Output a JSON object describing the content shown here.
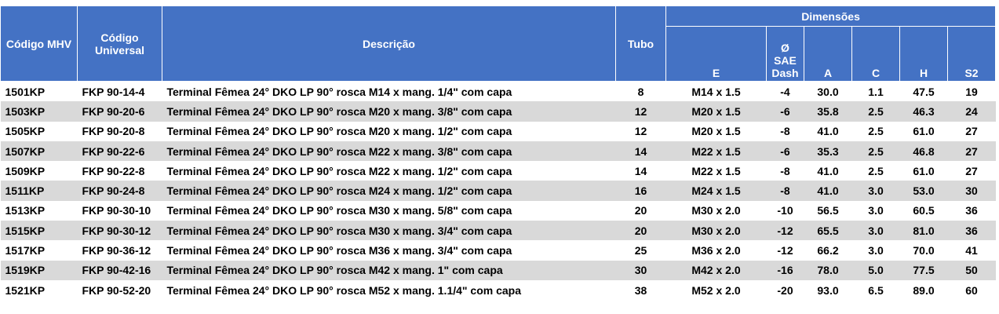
{
  "header": {
    "codigo_mhv": "Código MHV",
    "codigo_universal": "Código Universal",
    "descricao": "Descrição",
    "tubo": "Tubo",
    "dimensoes": "Dimensões",
    "e": "E",
    "sae_dash": "Ø SAE Dash",
    "a": "A",
    "c": "C",
    "h": "H",
    "s2": "S2"
  },
  "rows": [
    [
      "1501KP",
      "FKP 90-14-4",
      "Terminal Fêmea 24° DKO LP 90° rosca M14 x mang. 1/4\" com capa",
      "8",
      "M14 x 1.5",
      "-4",
      "30.0",
      "1.1",
      "47.5",
      "19"
    ],
    [
      "1503KP",
      "FKP 90-20-6",
      "Terminal Fêmea 24° DKO LP 90° rosca M20 x mang. 3/8\" com capa",
      "12",
      "M20 x 1.5",
      "-6",
      "35.8",
      "2.5",
      "46.3",
      "24"
    ],
    [
      "1505KP",
      "FKP 90-20-8",
      "Terminal Fêmea 24° DKO LP 90° rosca M20 x mang. 1/2\" com capa",
      "12",
      "M20 x 1.5",
      "-8",
      "41.0",
      "2.5",
      "61.0",
      "27"
    ],
    [
      "1507KP",
      "FKP 90-22-6",
      "Terminal Fêmea 24° DKO LP 90° rosca M22 x mang. 3/8\" com capa",
      "14",
      "M22 x 1.5",
      "-6",
      "35.3",
      "2.5",
      "46.8",
      "27"
    ],
    [
      "1509KP",
      "FKP 90-22-8",
      "Terminal Fêmea 24° DKO LP 90° rosca M22 x mang. 1/2\" com capa",
      "14",
      "M22 x 1.5",
      "-8",
      "41.0",
      "2.5",
      "61.0",
      "27"
    ],
    [
      "1511KP",
      "FKP 90-24-8",
      "Terminal Fêmea 24° DKO LP 90° rosca M24 x mang. 1/2\" com capa",
      "16",
      "M24 x 1.5",
      "-8",
      "41.0",
      "3.0",
      "53.0",
      "30"
    ],
    [
      "1513KP",
      "FKP 90-30-10",
      "Terminal Fêmea 24° DKO LP 90° rosca M30 x mang. 5/8\" com capa",
      "20",
      "M30 x 2.0",
      "-10",
      "56.5",
      "3.0",
      "60.5",
      "36"
    ],
    [
      "1515KP",
      "FKP 90-30-12",
      "Terminal Fêmea 24° DKO LP 90° rosca M30 x mang. 3/4\" com capa",
      "20",
      "M30 x 2.0",
      "-12",
      "65.5",
      "3.0",
      "81.0",
      "36"
    ],
    [
      "1517KP",
      "FKP 90-36-12",
      "Terminal Fêmea 24° DKO LP 90° rosca M36 x mang. 3/4\" com capa",
      "25",
      "M36 x 2.0",
      "-12",
      "66.2",
      "3.0",
      "70.0",
      "41"
    ],
    [
      "1519KP",
      "FKP 90-42-16",
      "Terminal Fêmea 24° DKO LP 90° rosca M42 x mang. 1\" com capa",
      "30",
      "M42 x 2.0",
      "-16",
      "78.0",
      "5.0",
      "77.5",
      "50"
    ],
    [
      "1521KP",
      "FKP 90-52-20",
      "Terminal Fêmea 24° DKO LP 90° rosca M52 x mang. 1.1/4\" com capa",
      "38",
      "M52 x 2.0",
      "-20",
      "93.0",
      "6.5",
      "89.0",
      "60"
    ]
  ],
  "colors": {
    "header_bg": "#4472c4",
    "stripe": "#d9d9d9"
  }
}
